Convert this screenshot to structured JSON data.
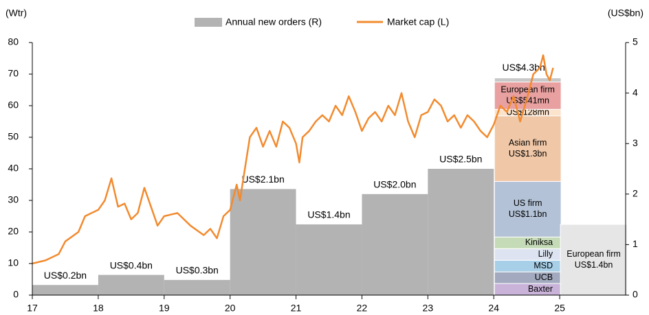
{
  "chart_data": {
    "type": "combo",
    "y_label": "(Wtr)",
    "y2_label": "(US$bn)",
    "xlim": [
      17,
      26
    ],
    "xticks": [
      17,
      18,
      19,
      20,
      21,
      22,
      23,
      24,
      25
    ],
    "ylim": [
      0,
      80
    ],
    "yticks": [
      0,
      10,
      20,
      30,
      40,
      50,
      60,
      70,
      80
    ],
    "y2lim": [
      0,
      5
    ],
    "y2ticks": [
      0,
      1,
      2,
      3,
      4,
      5
    ],
    "series": [
      {
        "name": "Annual new orders (R)",
        "color": "#b3b3b3",
        "axis": "y2",
        "x": [
          17,
          18,
          19,
          20,
          21,
          22,
          23
        ],
        "values": [
          0.2,
          0.4,
          0.3,
          2.1,
          1.4,
          2.0,
          2.5
        ],
        "value_labels": [
          "US$0.2bn",
          "US$0.4bn",
          "US$0.3bn",
          "US$2.1bn",
          "US$1.4bn",
          "US$2.0bn",
          "US$2.5bn"
        ]
      },
      {
        "name": "Market cap (L)",
        "color": "#f28a2e",
        "x": [
          17.0,
          17.2,
          17.4,
          17.5,
          17.7,
          17.8,
          18.0,
          18.1,
          18.2,
          18.3,
          18.4,
          18.5,
          18.6,
          18.7,
          18.8,
          18.9,
          19.0,
          19.2,
          19.4,
          19.6,
          19.7,
          19.8,
          19.9,
          20.0,
          20.1,
          20.15,
          20.3,
          20.4,
          20.5,
          20.6,
          20.7,
          20.8,
          20.9,
          21.0,
          21.05,
          21.1,
          21.2,
          21.3,
          21.4,
          21.5,
          21.6,
          21.7,
          21.8,
          21.9,
          22.0,
          22.1,
          22.2,
          22.3,
          22.4,
          22.5,
          22.6,
          22.7,
          22.8,
          22.9,
          23.0,
          23.1,
          23.2,
          23.3,
          23.4,
          23.5,
          23.6,
          23.7,
          23.8,
          23.9,
          24.0,
          24.1,
          24.2,
          24.3,
          24.4,
          24.5,
          24.6,
          24.7,
          24.75,
          24.8,
          24.85,
          24.9
        ],
        "values": [
          10,
          11,
          13,
          17,
          20,
          25,
          27,
          30,
          37,
          28,
          29,
          24,
          26,
          34,
          28,
          22,
          25,
          26,
          22,
          19,
          21,
          18,
          25,
          27,
          35,
          30,
          50,
          53,
          47,
          52,
          47,
          55,
          53,
          48,
          42,
          50,
          52,
          55,
          57,
          55,
          60,
          57,
          63,
          58,
          52,
          56,
          58,
          55,
          60,
          57,
          64,
          55,
          50,
          57,
          58,
          62,
          60,
          55,
          57,
          53,
          57,
          55,
          52,
          50,
          54,
          60,
          58,
          63,
          55,
          62,
          70,
          72,
          76,
          70,
          68,
          72
        ]
      }
    ],
    "columns": [
      {
        "x": 24,
        "total_label": {
          "value": 4.3,
          "label": "US$4.3bn"
        },
        "segments": [
          {
            "label": [
              "Baxter"
            ],
            "value": 0.23,
            "color": "#c9b3d9"
          },
          {
            "label": [
              "UCB"
            ],
            "value": 0.23,
            "color": "#a3aabf"
          },
          {
            "label": [
              "MSD"
            ],
            "value": 0.23,
            "color": "#a8cfe8"
          },
          {
            "label": [
              "Lilly"
            ],
            "value": 0.23,
            "color": "#dde3f0"
          },
          {
            "label": [
              "Kiniksa"
            ],
            "value": 0.23,
            "color": "#c5dbb8"
          },
          {
            "label": [
              "US firm",
              "US$1.1bn"
            ],
            "value": 1.1,
            "color": "#b3c2d6"
          },
          {
            "label": [
              "Asian firm",
              "US$1.3bn"
            ],
            "value": 1.3,
            "color": "#f0c8a8"
          },
          {
            "label": [
              "US$128mn"
            ],
            "value": 0.128,
            "color": "#fbe3cc"
          },
          {
            "label": [
              "European firm",
              "US$541mn"
            ],
            "value": 0.541,
            "color": "#e8a0a0"
          },
          {
            "value": 0.081,
            "color": "#c8c8c8"
          }
        ]
      },
      {
        "x": 25,
        "segments": [
          {
            "label": [
              "European firm",
              "US$1.4bn"
            ],
            "value": 1.4,
            "color": "#e6e6e6"
          }
        ]
      }
    ]
  }
}
